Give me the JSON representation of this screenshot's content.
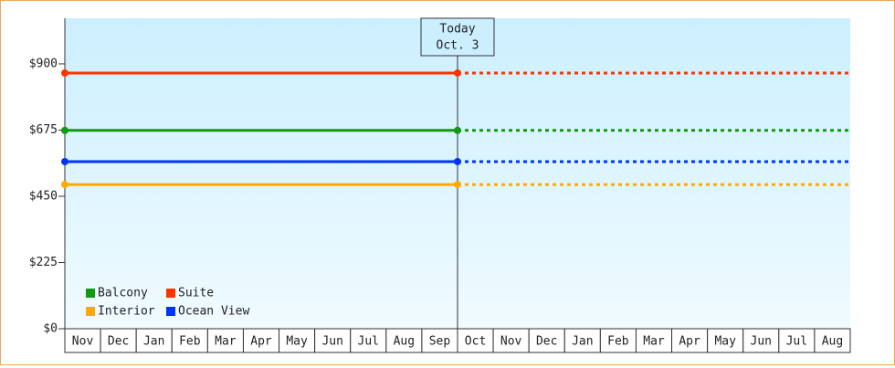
{
  "chart_data": {
    "type": "line",
    "categories": [
      "Nov",
      "Dec",
      "Jan",
      "Feb",
      "Mar",
      "Apr",
      "May",
      "Jun",
      "Jul",
      "Aug",
      "Sep",
      "Oct",
      "Nov",
      "Dec",
      "Jan",
      "Feb",
      "Mar",
      "Apr",
      "May",
      "Jun",
      "Jul",
      "Aug"
    ],
    "series": [
      {
        "name": "Balcony",
        "color": "#119911",
        "value": 674
      },
      {
        "name": "Suite",
        "color": "#ff3300",
        "value": 869
      },
      {
        "name": "Interior",
        "color": "#ffaa00",
        "value": 490
      },
      {
        "name": "Ocean View",
        "color": "#0033ff",
        "value": 568
      }
    ],
    "annotation": {
      "title": "Today",
      "date": "Oct. 3"
    },
    "ylim": [
      0,
      1055
    ],
    "yticks": [
      {
        "value": 0,
        "label": "$0"
      },
      {
        "value": 225,
        "label": "$225"
      },
      {
        "value": 450,
        "label": "$450"
      },
      {
        "value": 675,
        "label": "$675"
      },
      {
        "value": 900,
        "label": "$900"
      }
    ]
  }
}
